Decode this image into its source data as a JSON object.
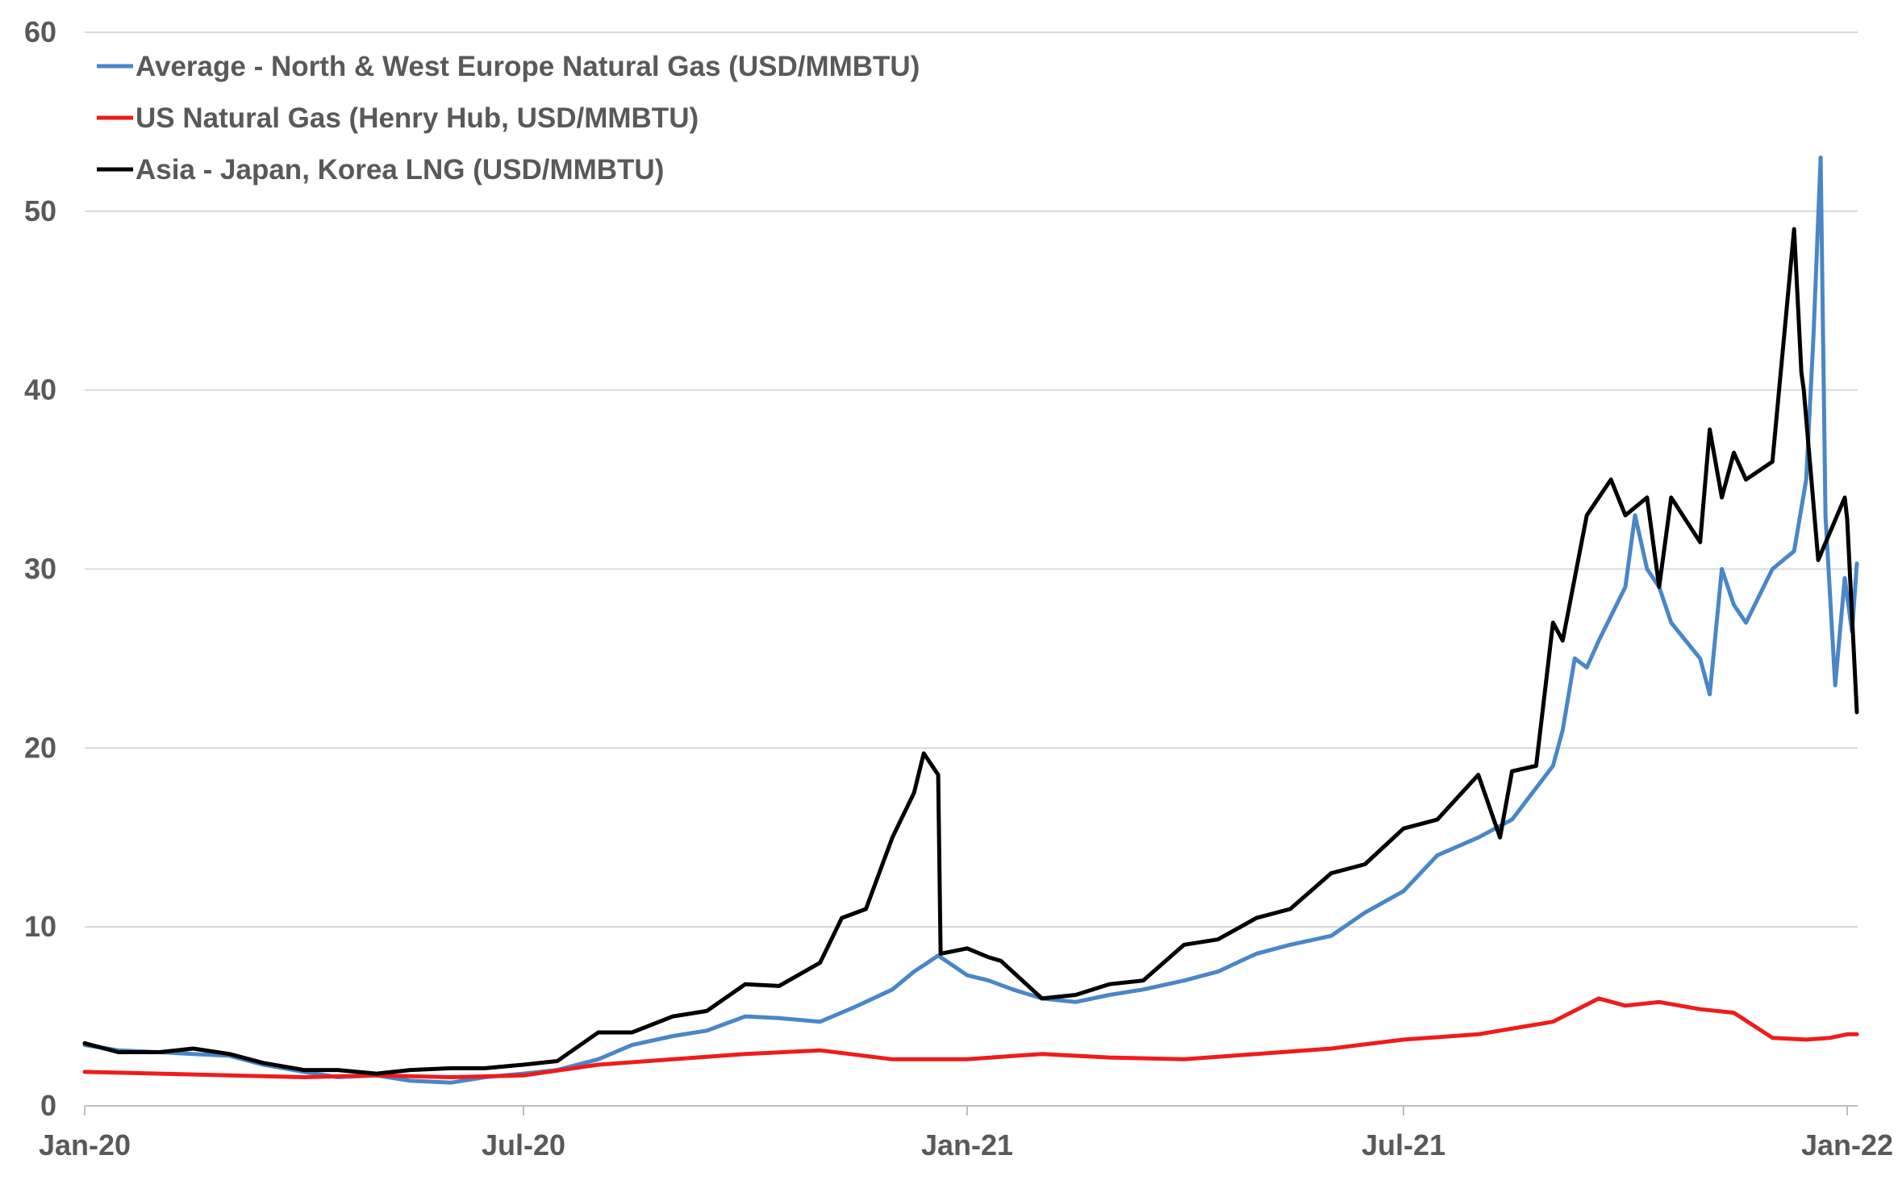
{
  "chart_data": {
    "type": "line",
    "title": "",
    "xlabel": "",
    "ylabel": "",
    "ylim": [
      0,
      60
    ],
    "y_ticks": [
      "0",
      "10",
      "20",
      "30",
      "40",
      "50",
      "60"
    ],
    "x_ticks": [
      "Jan-20",
      "Jul-20",
      "Jan-21",
      "Jul-21",
      "Jan-22"
    ],
    "grid": "horizontal",
    "legend_position": "top-left",
    "series": [
      {
        "name": "Average - North & West Europe Natural Gas (USD/MMBTU)",
        "color": "#4a86c8",
        "x": [
          "2020-01-01",
          "2020-01-15",
          "2020-02-01",
          "2020-02-15",
          "2020-03-01",
          "2020-03-15",
          "2020-04-01",
          "2020-04-15",
          "2020-05-01",
          "2020-05-15",
          "2020-06-01",
          "2020-06-15",
          "2020-07-01",
          "2020-07-15",
          "2020-08-01",
          "2020-08-15",
          "2020-09-01",
          "2020-09-15",
          "2020-10-01",
          "2020-10-15",
          "2020-11-01",
          "2020-11-15",
          "2020-12-01",
          "2020-12-10",
          "2020-12-20",
          "2021-01-01",
          "2021-01-10",
          "2021-01-20",
          "2021-02-01",
          "2021-02-15",
          "2021-03-01",
          "2021-03-15",
          "2021-04-01",
          "2021-04-15",
          "2021-05-01",
          "2021-05-15",
          "2021-06-01",
          "2021-06-15",
          "2021-07-01",
          "2021-07-15",
          "2021-08-01",
          "2021-08-15",
          "2021-09-01",
          "2021-09-05",
          "2021-09-10",
          "2021-09-15",
          "2021-09-20",
          "2021-10-01",
          "2021-10-05",
          "2021-10-10",
          "2021-10-15",
          "2021-10-20",
          "2021-11-01",
          "2021-11-05",
          "2021-11-10",
          "2021-11-15",
          "2021-11-20",
          "2021-12-01",
          "2021-12-10",
          "2021-12-15",
          "2021-12-18",
          "2021-12-21",
          "2021-12-23",
          "2021-12-27",
          "2021-12-31",
          "2022-01-03",
          "2022-01-05"
        ],
        "values": [
          3.4,
          3.1,
          3.0,
          2.9,
          2.8,
          2.3,
          1.9,
          1.6,
          1.7,
          1.4,
          1.3,
          1.6,
          1.8,
          2.0,
          2.6,
          3.4,
          3.9,
          4.2,
          5.0,
          4.9,
          4.7,
          5.5,
          6.5,
          7.5,
          8.4,
          7.3,
          7.0,
          6.5,
          6.0,
          5.8,
          6.2,
          6.5,
          7.0,
          7.5,
          8.5,
          9.0,
          9.5,
          10.8,
          12.0,
          14.0,
          15.0,
          16.0,
          19.0,
          21.0,
          25.0,
          24.5,
          26.0,
          29.0,
          33.0,
          30.0,
          29.0,
          27.0,
          25.0,
          23.0,
          30.0,
          28.0,
          27.0,
          30.0,
          31.0,
          35.0,
          43.0,
          53.0,
          33.0,
          23.5,
          29.5,
          26.5,
          30.3
        ]
      },
      {
        "name": "US Natural Gas (Henry Hub, USD/MMBTU)",
        "color": "#ee1c1c",
        "x": [
          "2020-01-01",
          "2020-02-01",
          "2020-03-01",
          "2020-04-01",
          "2020-05-01",
          "2020-06-01",
          "2020-07-01",
          "2020-08-01",
          "2020-09-01",
          "2020-10-01",
          "2020-11-01",
          "2020-12-01",
          "2021-01-01",
          "2021-02-01",
          "2021-03-01",
          "2021-04-01",
          "2021-05-01",
          "2021-06-01",
          "2021-07-01",
          "2021-08-01",
          "2021-09-01",
          "2021-09-20",
          "2021-10-01",
          "2021-10-15",
          "2021-11-01",
          "2021-11-15",
          "2021-12-01",
          "2021-12-15",
          "2021-12-25",
          "2022-01-01",
          "2022-01-05"
        ],
        "values": [
          1.9,
          1.8,
          1.7,
          1.6,
          1.7,
          1.6,
          1.7,
          2.3,
          2.6,
          2.9,
          3.1,
          2.6,
          2.6,
          2.9,
          2.7,
          2.6,
          2.9,
          3.2,
          3.7,
          4.0,
          4.7,
          6.0,
          5.6,
          5.8,
          5.4,
          5.2,
          3.8,
          3.7,
          3.8,
          4.0,
          4.0
        ]
      },
      {
        "name": "Asia - Japan, Korea LNG (USD/MMBTU)",
        "color": "#000000",
        "x": [
          "2020-01-01",
          "2020-01-15",
          "2020-02-01",
          "2020-02-15",
          "2020-03-01",
          "2020-03-15",
          "2020-04-01",
          "2020-04-15",
          "2020-05-01",
          "2020-05-15",
          "2020-06-01",
          "2020-06-15",
          "2020-07-01",
          "2020-07-15",
          "2020-08-01",
          "2020-08-15",
          "2020-09-01",
          "2020-09-15",
          "2020-10-01",
          "2020-10-15",
          "2020-11-01",
          "2020-11-10",
          "2020-11-20",
          "2020-12-01",
          "2020-12-10",
          "2020-12-14",
          "2020-12-20",
          "2020-12-21",
          "2021-01-01",
          "2021-01-10",
          "2021-01-15",
          "2021-02-01",
          "2021-02-15",
          "2021-03-01",
          "2021-03-15",
          "2021-04-01",
          "2021-04-15",
          "2021-05-01",
          "2021-05-15",
          "2021-06-01",
          "2021-06-15",
          "2021-07-01",
          "2021-07-15",
          "2021-08-01",
          "2021-08-10",
          "2021-08-15",
          "2021-08-25",
          "2021-09-01",
          "2021-09-05",
          "2021-09-15",
          "2021-09-20",
          "2021-09-25",
          "2021-10-01",
          "2021-10-10",
          "2021-10-15",
          "2021-10-20",
          "2021-11-01",
          "2021-11-05",
          "2021-11-10",
          "2021-11-15",
          "2021-11-20",
          "2021-12-01",
          "2021-12-10",
          "2021-12-13",
          "2021-12-14",
          "2021-12-20",
          "2021-12-31",
          "2022-01-01",
          "2022-01-05"
        ],
        "values": [
          3.5,
          3.0,
          3.0,
          3.2,
          2.9,
          2.4,
          2.0,
          2.0,
          1.8,
          2.0,
          2.1,
          2.1,
          2.3,
          2.5,
          4.1,
          4.1,
          5.0,
          5.3,
          6.8,
          6.7,
          8.0,
          10.5,
          11.0,
          15.0,
          17.5,
          19.7,
          18.5,
          8.5,
          8.8,
          8.3,
          8.1,
          6.0,
          6.2,
          6.8,
          7.0,
          9.0,
          9.3,
          10.5,
          11.0,
          13.0,
          13.5,
          15.5,
          16.0,
          18.5,
          15.0,
          18.7,
          19.0,
          27.0,
          26.0,
          33.0,
          34.0,
          35.0,
          33.0,
          34.0,
          29.0,
          34.0,
          31.5,
          37.8,
          34.0,
          36.5,
          35.0,
          36.0,
          49.0,
          41.0,
          40.0,
          30.5,
          34.0,
          32.8,
          22.0
        ]
      }
    ]
  }
}
